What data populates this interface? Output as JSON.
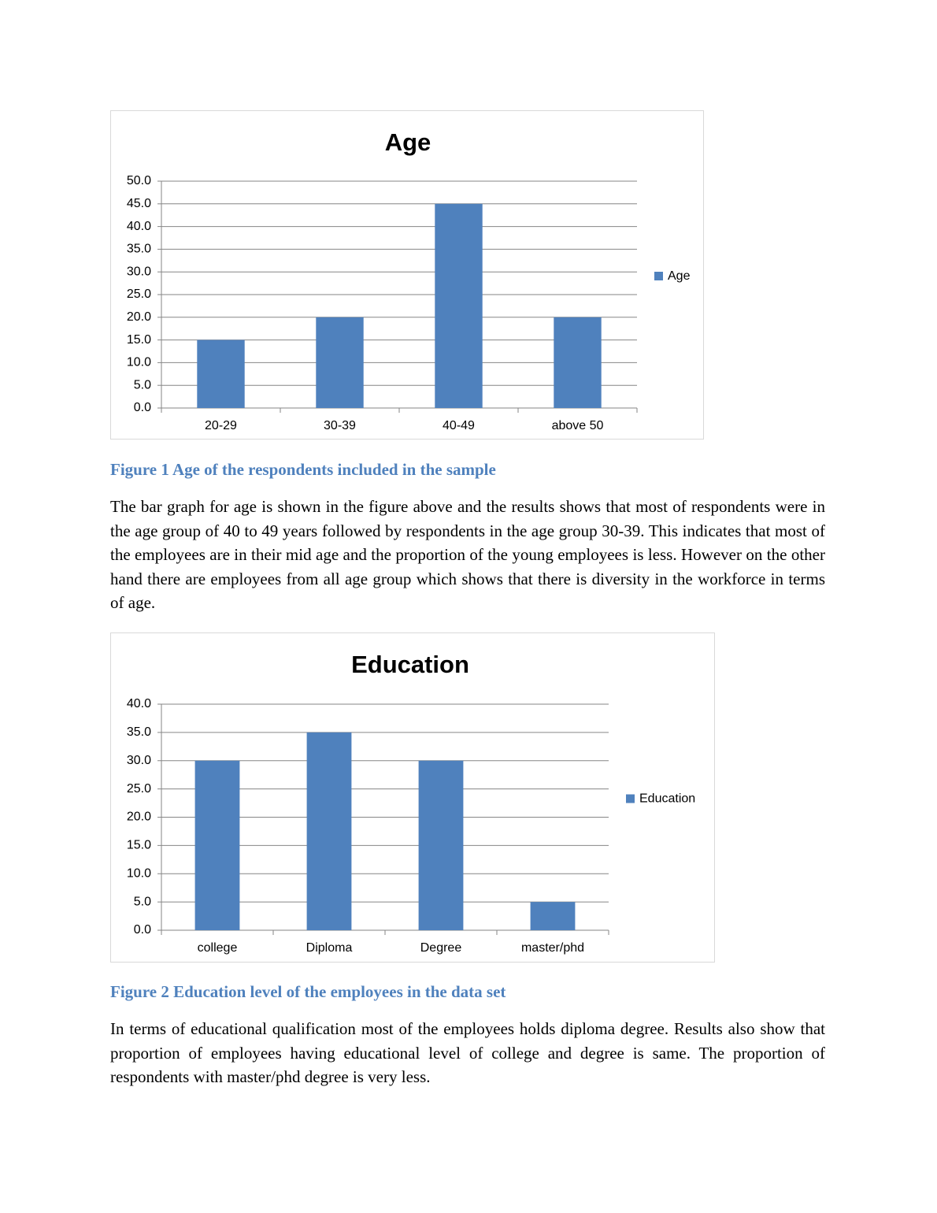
{
  "chart_data": [
    {
      "type": "bar",
      "title": "Age",
      "categories": [
        "20-29",
        "30-39",
        "40-49",
        "above 50"
      ],
      "series": [
        {
          "name": "Age",
          "color": "#4f81bd",
          "values": [
            15,
            20,
            45,
            20
          ]
        }
      ],
      "ylim": [
        0,
        50
      ],
      "yticks": [
        {
          "value": 0,
          "label": "0.0"
        },
        {
          "value": 5,
          "label": "5.0"
        },
        {
          "value": 10,
          "label": "10.0"
        },
        {
          "value": 15,
          "label": "15.0"
        },
        {
          "value": 20,
          "label": "20.0"
        },
        {
          "value": 25,
          "label": "25.0"
        },
        {
          "value": 30,
          "label": "30.0"
        },
        {
          "value": 35,
          "label": "35.0"
        },
        {
          "value": 40,
          "label": "40.0"
        },
        {
          "value": 45,
          "label": "45.0"
        },
        {
          "value": 50,
          "label": "50.0"
        }
      ],
      "grid": true,
      "legend": "right"
    },
    {
      "type": "bar",
      "title": "Education",
      "categories": [
        "college",
        "Diploma",
        "Degree",
        "master/phd"
      ],
      "series": [
        {
          "name": "Education",
          "color": "#4f81bd",
          "values": [
            30,
            35,
            30,
            5
          ]
        }
      ],
      "ylim": [
        0,
        40
      ],
      "yticks": [
        {
          "value": 0,
          "label": "0.0"
        },
        {
          "value": 5,
          "label": "5.0"
        },
        {
          "value": 10,
          "label": "10.0"
        },
        {
          "value": 15,
          "label": "15.0"
        },
        {
          "value": 20,
          "label": "20.0"
        },
        {
          "value": 25,
          "label": "25.0"
        },
        {
          "value": 30,
          "label": "30.0"
        },
        {
          "value": 35,
          "label": "35.0"
        },
        {
          "value": 40,
          "label": "40.0"
        }
      ],
      "grid": true,
      "legend": "right"
    }
  ],
  "captions": [
    "Figure 1 Age of the respondents included in the sample",
    "Figure 2 Education level of the employees in the data set"
  ],
  "paragraphs": [
    "The bar graph for age is shown in the figure above and the results shows that most of respondents were in the age group of 40 to 49 years followed by respondents in the age group 30-39. This indicates that most of the employees are in their mid age and the proportion of the young employees is less. However on the other hand there are employees from all age group which shows that there is diversity in the workforce in terms of age.",
    "In terms of educational qualification most of the employees holds diploma degree.  Results also show that proportion of employees having educational level of college and degree is same. The proportion of respondents with master/phd degree is very less."
  ]
}
